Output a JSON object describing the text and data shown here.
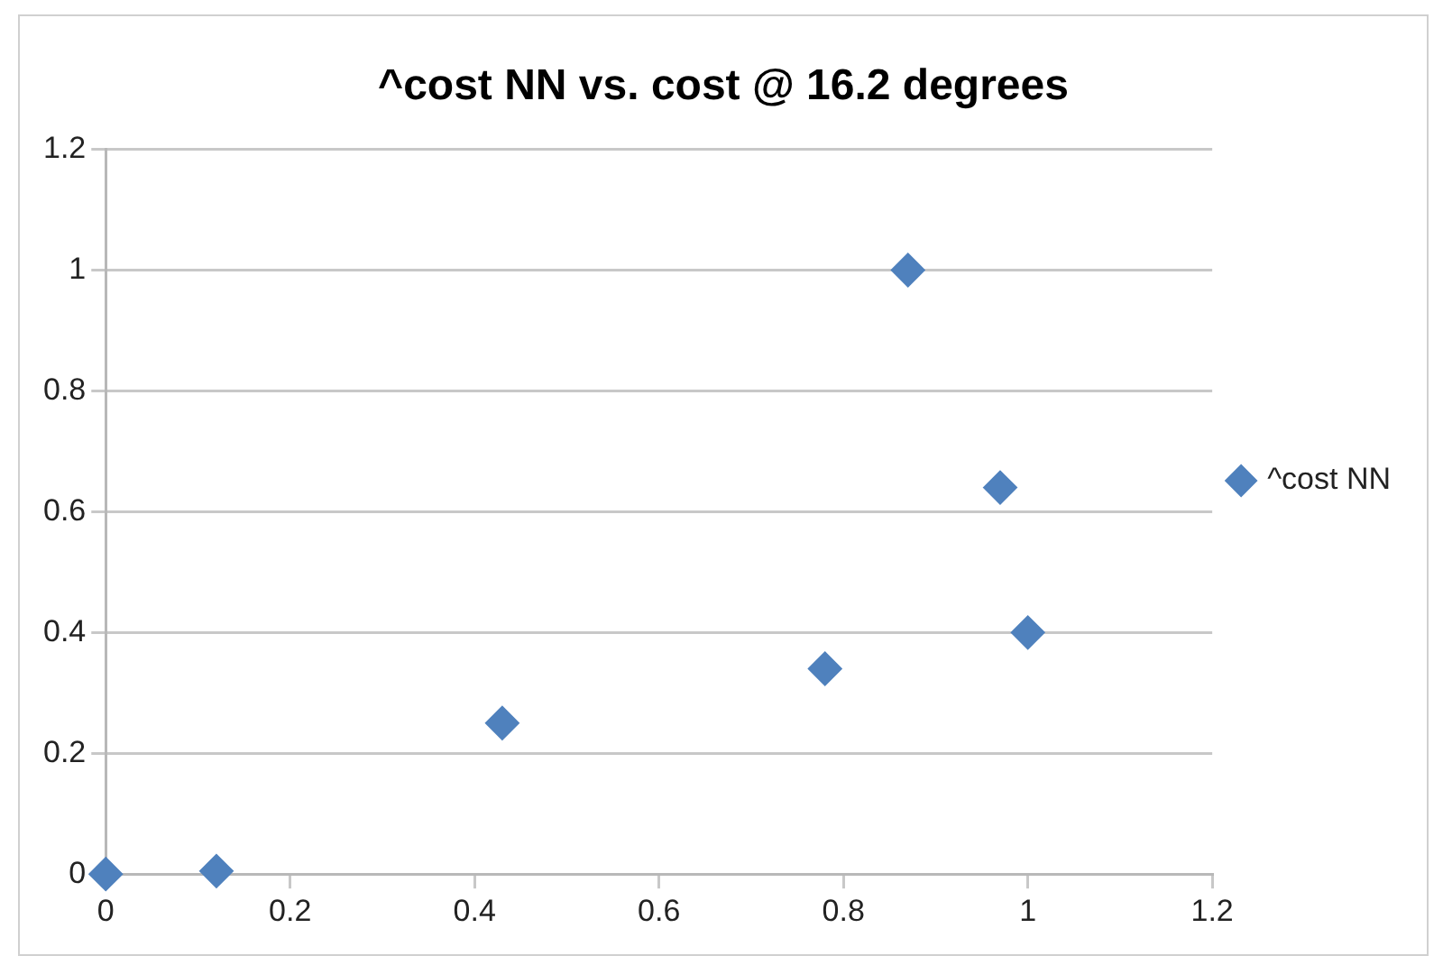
{
  "chart_data": {
    "type": "scatter",
    "title": "^cost NN vs. cost @ 16.2 degrees",
    "x": [
      0,
      0.12,
      0.43,
      0.78,
      0.87,
      0.97,
      1.0
    ],
    "series": [
      {
        "name": "^cost NN",
        "color": "#4f81bd",
        "values": [
          0,
          0.005,
          0.25,
          0.34,
          1.0,
          0.64,
          0.4
        ]
      }
    ],
    "xlim": [
      0,
      1.2
    ],
    "xticks": [
      0,
      0.2,
      0.4,
      0.6,
      0.8,
      1,
      1.2
    ],
    "ylim": [
      0,
      1.2
    ],
    "yticks": [
      0,
      0.2,
      0.4,
      0.6,
      0.8,
      1,
      1.2
    ],
    "grid": "y",
    "legend": "right",
    "marker": "diamond"
  }
}
